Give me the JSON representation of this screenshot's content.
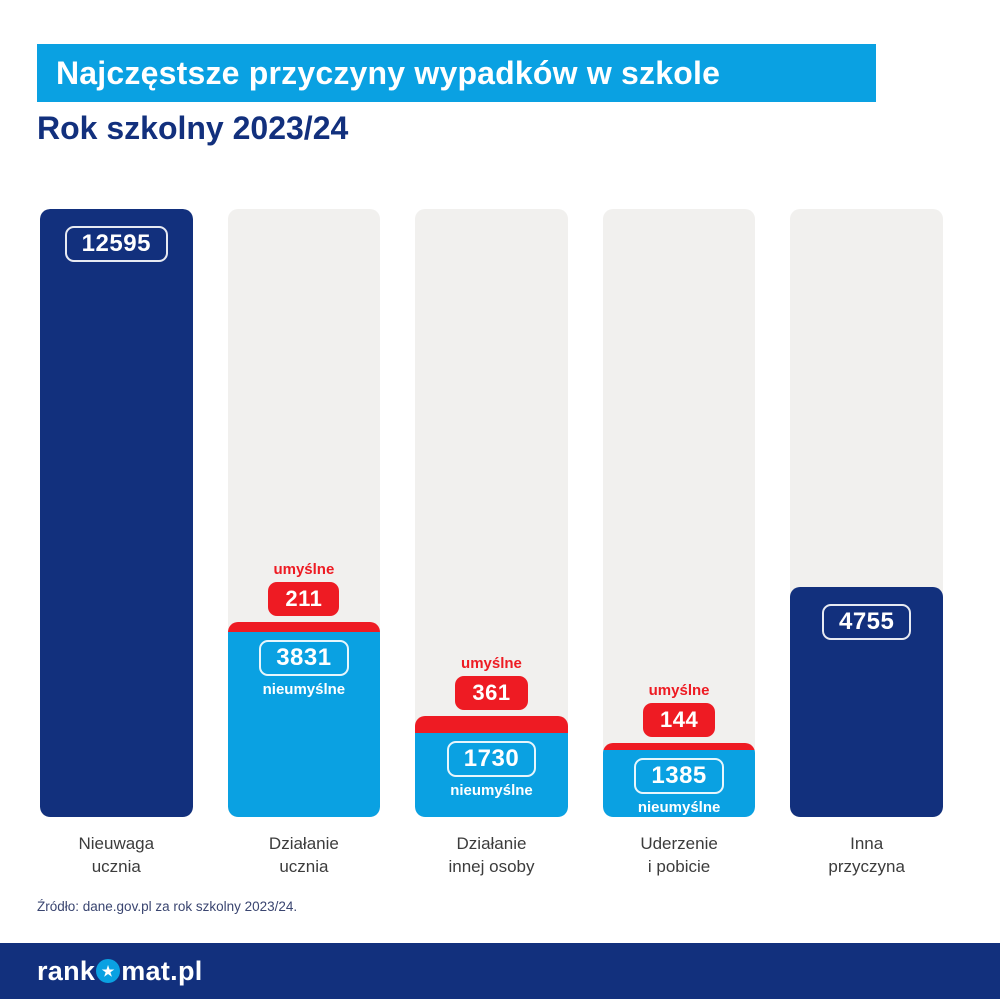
{
  "header": {
    "title": "Najczęstsze przyczyny wypadków w szkole",
    "subtitle": "Rok szkolny 2023/24"
  },
  "chart_data": {
    "type": "bar",
    "stacked": true,
    "scale_max": 12595,
    "ylim": [
      0,
      12595
    ],
    "legend": {
      "intentional": "umyślne",
      "unintentional": "nieumyślne"
    },
    "categories": [
      "Nieuwaga ucznia",
      "Działanie ucznia",
      "Działanie innej osoby",
      "Uderzenie i pobicie",
      "Inna przyczyna"
    ],
    "bars": [
      {
        "type": "single",
        "value": 12595,
        "category_line1": "Nieuwaga",
        "category_line2": "ucznia"
      },
      {
        "type": "stacked",
        "nieumyslne": 3831,
        "umyslne": 211,
        "category_line1": "Działanie",
        "category_line2": "ucznia"
      },
      {
        "type": "stacked",
        "nieumyslne": 1730,
        "umyslne": 361,
        "category_line1": "Działanie",
        "category_line2": "innej osoby"
      },
      {
        "type": "stacked",
        "nieumyslne": 1385,
        "umyslne": 144,
        "category_line1": "Uderzenie",
        "category_line2": "i pobicie"
      },
      {
        "type": "single",
        "value": 4755,
        "category_line1": "Inna",
        "category_line2": "przyczyna"
      }
    ]
  },
  "source": {
    "text": "Źródło: dane.gov.pl za rok szkolny 2023/24."
  },
  "footer": {
    "brand_prefix": "rank",
    "brand_suffix": "mat.pl",
    "star": "★"
  },
  "colors": {
    "navy": "#12307d",
    "blue": "#0aa1e2",
    "red": "#ee1b23",
    "track": "#f1f0ee"
  }
}
